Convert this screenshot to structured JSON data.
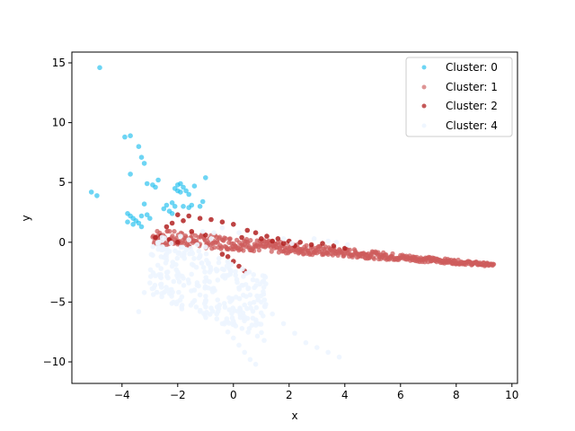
{
  "chart_data": {
    "type": "scatter",
    "title": "",
    "xlabel": "x",
    "ylabel": "y",
    "xlim": [
      -5.8,
      10.2
    ],
    "ylim": [
      -11.8,
      15.9
    ],
    "xticks": [
      -4,
      -2,
      0,
      2,
      4,
      6,
      8,
      10
    ],
    "yticks": [
      -10,
      -5,
      0,
      5,
      10,
      15
    ],
    "grid": false,
    "legend_position": "top-right",
    "series": [
      {
        "name": "Cluster: 0",
        "color": "#1fbfee",
        "points": [
          [
            -4.8,
            14.6
          ],
          [
            -5.1,
            4.2
          ],
          [
            -4.9,
            3.9
          ],
          [
            -3.9,
            8.8
          ],
          [
            -3.7,
            8.9
          ],
          [
            -3.4,
            8.0
          ],
          [
            -3.3,
            7.1
          ],
          [
            -3.2,
            6.6
          ],
          [
            -3.7,
            5.7
          ],
          [
            -3.1,
            4.9
          ],
          [
            -2.9,
            4.8
          ],
          [
            -2.7,
            5.2
          ],
          [
            -2.8,
            4.6
          ],
          [
            -3.2,
            3.2
          ],
          [
            -3.8,
            2.4
          ],
          [
            -3.7,
            2.2
          ],
          [
            -3.6,
            2.0
          ],
          [
            -3.5,
            1.8
          ],
          [
            -3.4,
            1.6
          ],
          [
            -3.3,
            1.3
          ],
          [
            -3.6,
            1.5
          ],
          [
            -3.8,
            1.7
          ],
          [
            -3.3,
            2.2
          ],
          [
            -3.1,
            2.3
          ],
          [
            -3.0,
            2.0
          ],
          [
            -2.4,
            3.1
          ],
          [
            -2.2,
            3.3
          ],
          [
            -2.1,
            3.0
          ],
          [
            -2.3,
            2.6
          ],
          [
            -2.5,
            2.8
          ],
          [
            -2.2,
            2.4
          ],
          [
            -2.1,
            4.5
          ],
          [
            -2.0,
            4.8
          ],
          [
            -1.9,
            4.9
          ],
          [
            -1.8,
            4.6
          ],
          [
            -1.7,
            4.3
          ],
          [
            -1.6,
            4.0
          ],
          [
            -1.9,
            4.2
          ],
          [
            -2.0,
            4.3
          ],
          [
            -1.8,
            3.0
          ],
          [
            -1.6,
            2.9
          ],
          [
            -1.5,
            3.1
          ],
          [
            -1.4,
            4.7
          ],
          [
            -1.2,
            3.0
          ],
          [
            -1.0,
            5.4
          ],
          [
            -1.1,
            3.4
          ]
        ]
      },
      {
        "name": "Cluster: 1",
        "color": "#cd5c5c",
        "points": []
      },
      {
        "name": "Cluster: 2",
        "color": "#b22222",
        "points": [
          [
            -2.0,
            2.3
          ],
          [
            -1.6,
            2.2
          ],
          [
            -1.2,
            2.0
          ],
          [
            -0.8,
            1.9
          ],
          [
            -0.4,
            1.7
          ],
          [
            0.0,
            1.5
          ],
          [
            -2.4,
            1.3
          ],
          [
            -2.2,
            1.6
          ],
          [
            -1.8,
            1.8
          ],
          [
            -1.5,
            0.9
          ],
          [
            -1.0,
            0.6
          ],
          [
            -2.6,
            0.5
          ],
          [
            -2.3,
            0.2
          ],
          [
            -2.0,
            0.0
          ],
          [
            -2.8,
            0.4
          ],
          [
            0.5,
            1.0
          ],
          [
            0.8,
            0.8
          ],
          [
            1.2,
            0.5
          ],
          [
            1.6,
            0.3
          ],
          [
            2.0,
            0.1
          ],
          [
            2.4,
            0.0
          ],
          [
            2.8,
            -0.2
          ],
          [
            1.0,
            0.3
          ],
          [
            1.4,
            0.1
          ],
          [
            1.8,
            -0.1
          ],
          [
            2.2,
            -0.3
          ],
          [
            0.3,
            0.4
          ],
          [
            -0.2,
            -1.2
          ],
          [
            0.0,
            -1.6
          ],
          [
            0.2,
            -2.0
          ],
          [
            0.4,
            -2.4
          ],
          [
            -0.4,
            -1.0
          ],
          [
            3.2,
            -0.1
          ],
          [
            3.6,
            -0.3
          ],
          [
            4.0,
            -0.5
          ]
        ]
      },
      {
        "name": "Cluster: 4",
        "color": "#edf5ff",
        "points": [
          [
            -2.4,
            -1.5
          ],
          [
            -2.2,
            -2.0
          ],
          [
            -2.0,
            -2.5
          ],
          [
            -1.8,
            -3.0
          ],
          [
            -1.6,
            -3.4
          ],
          [
            -1.4,
            -4.0
          ],
          [
            -1.2,
            -4.4
          ],
          [
            -1.0,
            -5.0
          ],
          [
            -0.8,
            -5.5
          ],
          [
            -0.6,
            -6.0
          ],
          [
            -0.4,
            -6.8
          ],
          [
            -0.2,
            -7.5
          ],
          [
            0.0,
            -8.0
          ],
          [
            0.2,
            -8.6
          ],
          [
            0.4,
            -9.2
          ],
          [
            0.6,
            -9.8
          ],
          [
            0.8,
            -10.2
          ],
          [
            -2.6,
            -2.2
          ],
          [
            -2.8,
            -2.8
          ],
          [
            -3.0,
            -3.4
          ],
          [
            -3.2,
            -4.2
          ],
          [
            -3.4,
            -5.8
          ],
          [
            -1.5,
            -0.8
          ],
          [
            -1.2,
            -1.2
          ],
          [
            -0.9,
            -1.8
          ],
          [
            -0.6,
            -2.4
          ],
          [
            -0.3,
            -3.0
          ],
          [
            0.2,
            -3.8
          ],
          [
            0.6,
            -4.4
          ],
          [
            1.0,
            -5.0
          ],
          [
            1.4,
            -6.0
          ],
          [
            1.8,
            -6.8
          ],
          [
            2.2,
            -7.6
          ],
          [
            2.6,
            -8.4
          ],
          [
            3.0,
            -8.8
          ],
          [
            3.4,
            -9.2
          ],
          [
            3.8,
            -9.6
          ],
          [
            -1.9,
            0.5
          ],
          [
            -1.6,
            0.2
          ],
          [
            -1.3,
            -0.2
          ],
          [
            -1.0,
            -0.4
          ],
          [
            -0.7,
            0.8
          ],
          [
            -0.4,
            1.2
          ],
          [
            -1.1,
            0.9
          ],
          [
            -0.8,
            0.3
          ],
          [
            0.2,
            0.8
          ],
          [
            1.8,
            0.3
          ],
          [
            2.1,
            -0.1
          ],
          [
            2.9,
            0.3
          ],
          [
            3.4,
            0.1
          ],
          [
            3.7,
            0.0
          ],
          [
            4.1,
            -0.2
          ]
        ]
      }
    ],
    "cluster1_band": {
      "x_start": -2.9,
      "x_end": 9.35,
      "y_start": 0.45,
      "y_end": -1.9
    }
  }
}
